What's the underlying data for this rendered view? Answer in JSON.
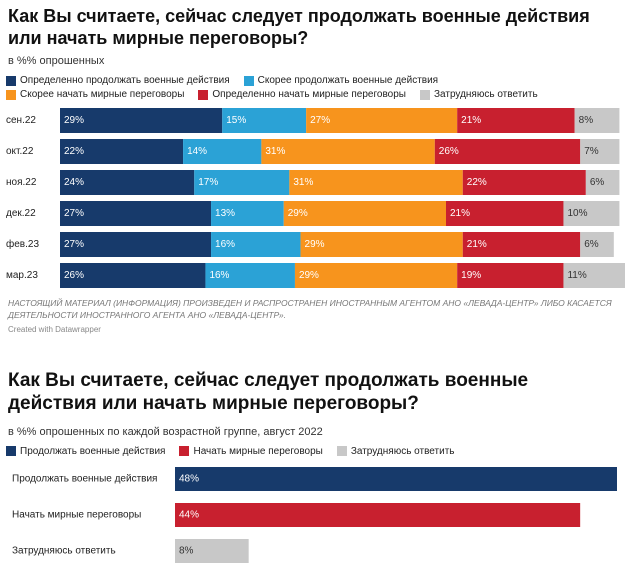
{
  "chart_data": [
    {
      "type": "stacked-bar",
      "orientation": "horizontal",
      "title": "Как Вы считаете, сейчас следует продолжать военные действия или начать мирные переговоры?",
      "subtitle": "в %% опрошенных",
      "categories": [
        "сен.22",
        "окт.22",
        "ноя.22",
        "дек.22",
        "фев.23",
        "мар.23"
      ],
      "series": [
        {
          "name": "Определенно продолжать военные действия",
          "color": "#173a6b",
          "values": [
            29,
            22,
            24,
            27,
            27,
            26
          ],
          "value_labels": [
            "29%",
            "22%",
            "24%",
            "27%",
            "27%",
            "26%"
          ]
        },
        {
          "name": "Скорее продолжать военные действия",
          "color": "#2ba2d6",
          "values": [
            15,
            14,
            17,
            13,
            16,
            16
          ],
          "value_labels": [
            "15%",
            "14%",
            "17%",
            "13%",
            "16%",
            "16%"
          ]
        },
        {
          "name": "Скорее начать мирные переговоры",
          "color": "#f7941d",
          "values": [
            27,
            31,
            31,
            29,
            29,
            29
          ],
          "value_labels": [
            "27%",
            "31%",
            "31%",
            "29%",
            "29%",
            "29%"
          ]
        },
        {
          "name": "Определенно начать мирные переговоры",
          "color": "#c8202f",
          "values": [
            21,
            26,
            22,
            21,
            21,
            19
          ],
          "value_labels": [
            "21%",
            "26%",
            "22%",
            "21%",
            "21%",
            "19%"
          ]
        },
        {
          "name": "Затрудняюсь ответить",
          "color": "#c8c8c8",
          "values": [
            8,
            7,
            6,
            10,
            6,
            11
          ],
          "value_labels": [
            "8%",
            "7%",
            "6%",
            "10%",
            "6%",
            "11%"
          ]
        }
      ],
      "note": "НАСТОЯЩИЙ МАТЕРИАЛ (ИНФОРМАЦИЯ) ПРОИЗВЕДЕН И РАСПРОСТРАНЕН ИНОСТРАННЫМ АГЕНТОМ АНО «ЛЕВАДА-ЦЕНТР» ЛИБО КАСАЕТСЯ ДЕЯТЕЛЬНОСТИ ИНОСТРАННОГО АГЕНТА АНО «ЛЕВАДА-ЦЕНТР».",
      "credit": "Created with Datawrapper"
    },
    {
      "type": "bar",
      "orientation": "horizontal",
      "title": "Как Вы считаете, сейчас следует продолжать военные действия или начать мирные переговоры?",
      "subtitle": "в %% опрошенных по каждой возрастной группе, август 2022",
      "categories": [
        "Продолжать военные действия",
        "Начать мирные переговоры",
        "Затрудняюсь ответить"
      ],
      "values": [
        48,
        44,
        8
      ],
      "value_labels": [
        "48%",
        "44%",
        "8%"
      ],
      "colors": [
        "#173a6b",
        "#c8202f",
        "#c8c8c8"
      ]
    }
  ]
}
